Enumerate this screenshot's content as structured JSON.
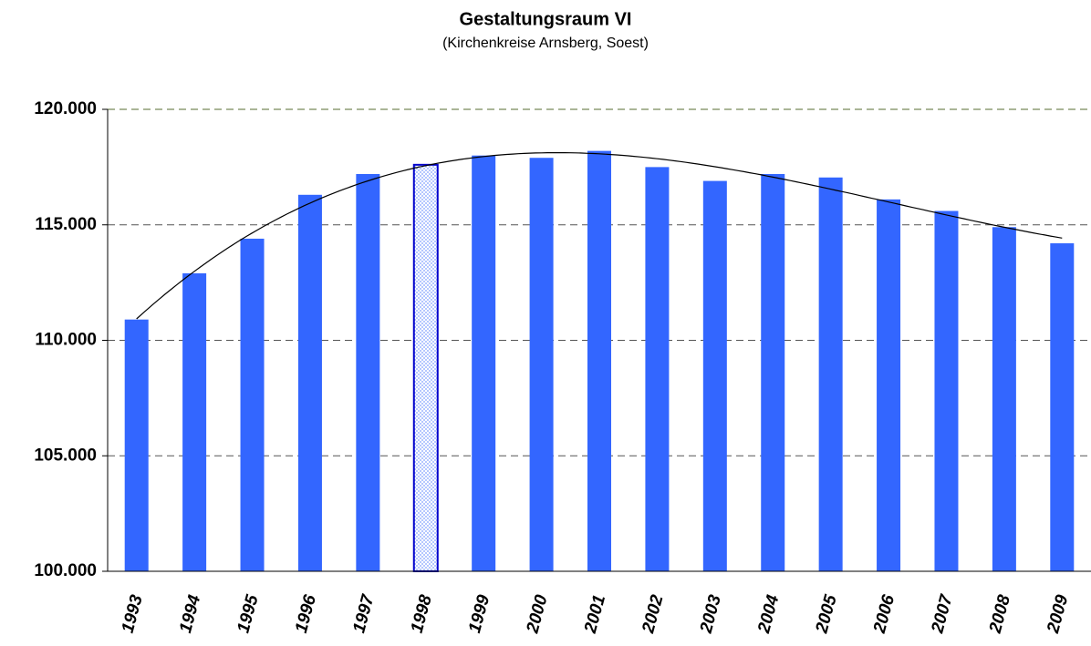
{
  "chart_data": {
    "type": "bar",
    "title": "Gestaltungsraum VI",
    "subtitle": "(Kirchenkreise Arnsberg, Soest)",
    "categories": [
      "1993",
      "1994",
      "1995",
      "1996",
      "1997",
      "1998",
      "1999",
      "2000",
      "2001",
      "2002",
      "2003",
      "2004",
      "2005",
      "2006",
      "2007",
      "2008",
      "2009"
    ],
    "values": [
      110900,
      112900,
      114400,
      116300,
      117200,
      117600,
      118000,
      117900,
      118200,
      117500,
      116900,
      117200,
      117050,
      116100,
      115600,
      114900,
      114200
    ],
    "color": "#3366ff",
    "highlight": 5,
    "trendline": {
      "type": "polynomial",
      "order": 3,
      "color": "#000000"
    },
    "ylim": [
      100000,
      120000
    ],
    "yticks": [
      {
        "value": 100000,
        "label": "100.000"
      },
      {
        "value": 105000,
        "label": "105.000"
      },
      {
        "value": 110000,
        "label": "110.000"
      },
      {
        "value": 115000,
        "label": "115.000"
      },
      {
        "value": 120000,
        "label": "120.000"
      }
    ],
    "grid": true
  }
}
